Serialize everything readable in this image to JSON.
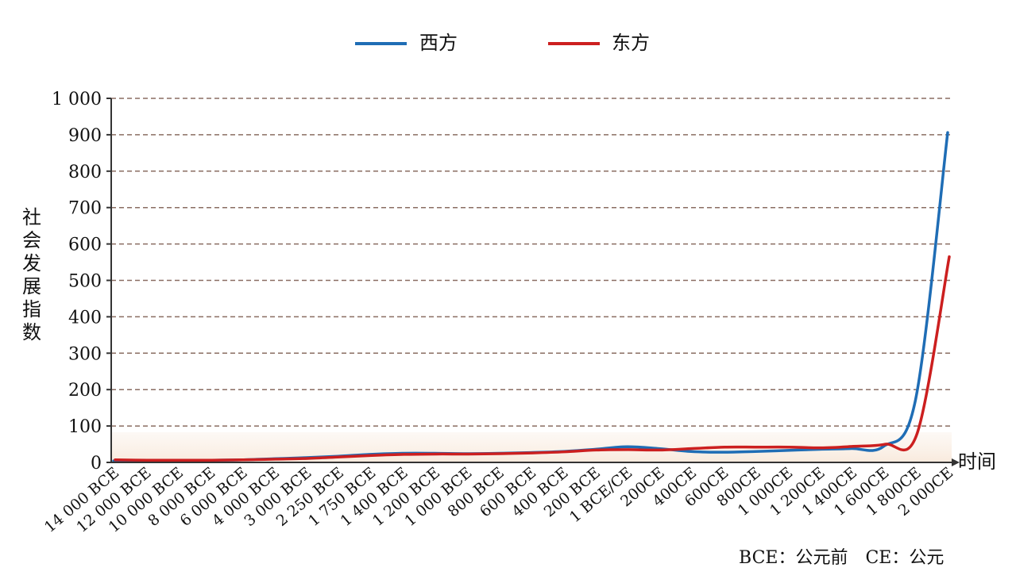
{
  "chart_data": {
    "type": "line",
    "legend": {
      "position": "top-center"
    },
    "ylabel": "社会发展指数",
    "xlabel": "时间",
    "ylim": [
      0,
      1000
    ],
    "yticks": [
      0,
      100,
      200,
      300,
      400,
      500,
      600,
      700,
      800,
      900,
      1000
    ],
    "ytick_labels": [
      "0",
      "100",
      "200",
      "300",
      "400",
      "500",
      "600",
      "700",
      "800",
      "900",
      "1 000"
    ],
    "grid": true,
    "categories": [
      "14 000 BCE",
      "12 000 BCE",
      "10 000 BCE",
      "8 000 BCE",
      "6 000 BCE",
      "4 000 BCE",
      "3 000 BCE",
      "2 250 BCE",
      "1 750 BCE",
      "1 400 BCE",
      "1 200 BCE",
      "1 000 BCE",
      "800 BCE",
      "600 BCE",
      "400 BCE",
      "200 BCE",
      "1 BCE/CE",
      "200CE",
      "400CE",
      "600CE",
      "800CE",
      "1 000CE",
      "1 200CE",
      "1 400CE",
      "1 600CE",
      "1 800CE",
      "2 000CE"
    ],
    "series": [
      {
        "name": "西方",
        "color": "#1f6db5",
        "values": [
          4,
          5,
          5,
          6,
          7,
          10,
          13,
          17,
          22,
          25,
          25,
          24,
          25,
          27,
          30,
          36,
          43,
          38,
          30,
          28,
          30,
          33,
          36,
          38,
          44,
          173,
          906
        ]
      },
      {
        "name": "东方",
        "color": "#cc1f1f",
        "values": [
          7,
          6,
          6,
          6,
          7,
          9,
          11,
          15,
          19,
          22,
          23,
          23,
          24,
          26,
          29,
          34,
          35,
          34,
          38,
          42,
          42,
          42,
          40,
          44,
          50,
          80,
          565
        ]
      }
    ],
    "annotation": "BCE：公元前　CE：公元"
  }
}
